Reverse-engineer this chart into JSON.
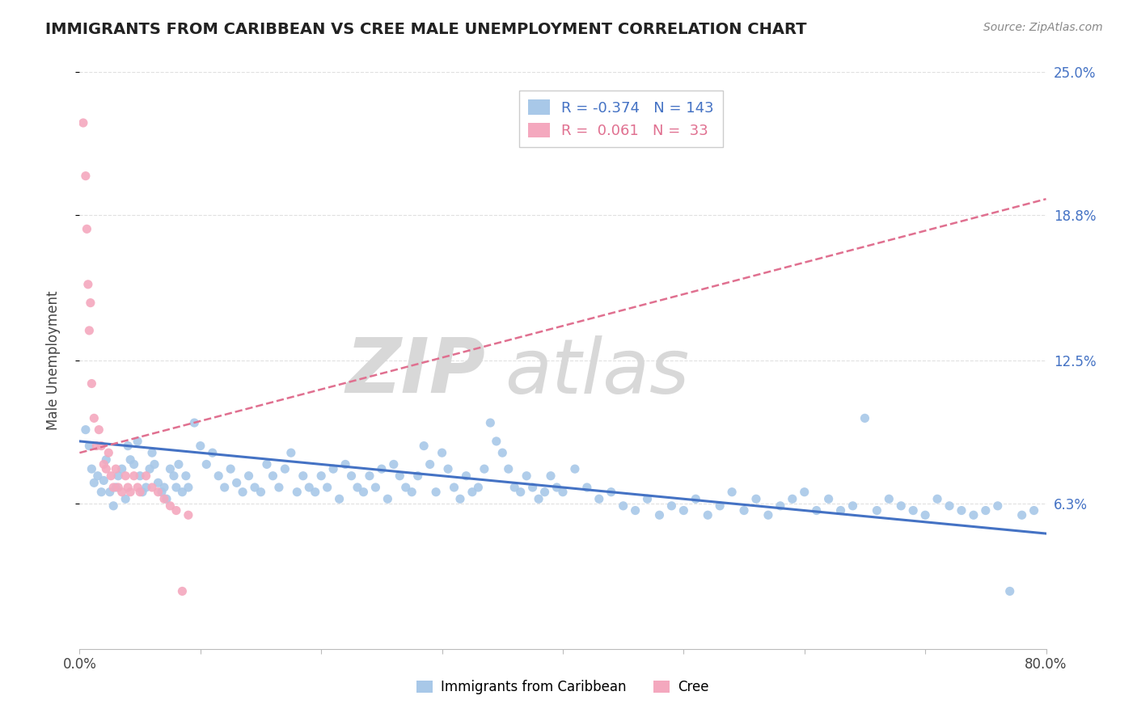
{
  "title": "IMMIGRANTS FROM CARIBBEAN VS CREE MALE UNEMPLOYMENT CORRELATION CHART",
  "source_text": "Source: ZipAtlas.com",
  "ylabel": "Male Unemployment",
  "xlim": [
    0.0,
    0.8
  ],
  "ylim": [
    0.0,
    0.25
  ],
  "xtick_labels": [
    "0.0%",
    "80.0%"
  ],
  "ytick_labels_right": [
    "6.3%",
    "12.5%",
    "18.8%",
    "25.0%"
  ],
  "ytick_vals_right": [
    0.063,
    0.125,
    0.188,
    0.25
  ],
  "watermark_text": "ZIP",
  "watermark_text2": "atlas",
  "background_color": "#ffffff",
  "grid_color": "#e0e0e0",
  "caribbean_color": "#a8c8e8",
  "cree_color": "#f4a8be",
  "caribbean_line_color": "#4472c4",
  "cree_line_color": "#e07090",
  "carib_R": -0.374,
  "carib_N": 143,
  "cree_R": 0.061,
  "cree_N": 33,
  "caribbean_scatter": [
    [
      0.005,
      0.095
    ],
    [
      0.008,
      0.088
    ],
    [
      0.01,
      0.078
    ],
    [
      0.012,
      0.072
    ],
    [
      0.015,
      0.075
    ],
    [
      0.018,
      0.068
    ],
    [
      0.02,
      0.073
    ],
    [
      0.022,
      0.082
    ],
    [
      0.025,
      0.068
    ],
    [
      0.028,
      0.062
    ],
    [
      0.03,
      0.07
    ],
    [
      0.032,
      0.075
    ],
    [
      0.035,
      0.078
    ],
    [
      0.038,
      0.065
    ],
    [
      0.04,
      0.088
    ],
    [
      0.042,
      0.082
    ],
    [
      0.045,
      0.08
    ],
    [
      0.048,
      0.09
    ],
    [
      0.05,
      0.075
    ],
    [
      0.052,
      0.068
    ],
    [
      0.055,
      0.07
    ],
    [
      0.058,
      0.078
    ],
    [
      0.06,
      0.085
    ],
    [
      0.062,
      0.08
    ],
    [
      0.065,
      0.072
    ],
    [
      0.068,
      0.068
    ],
    [
      0.07,
      0.07
    ],
    [
      0.072,
      0.065
    ],
    [
      0.075,
      0.078
    ],
    [
      0.078,
      0.075
    ],
    [
      0.08,
      0.07
    ],
    [
      0.082,
      0.08
    ],
    [
      0.085,
      0.068
    ],
    [
      0.088,
      0.075
    ],
    [
      0.09,
      0.07
    ],
    [
      0.095,
      0.098
    ],
    [
      0.1,
      0.088
    ],
    [
      0.105,
      0.08
    ],
    [
      0.11,
      0.085
    ],
    [
      0.115,
      0.075
    ],
    [
      0.12,
      0.07
    ],
    [
      0.125,
      0.078
    ],
    [
      0.13,
      0.072
    ],
    [
      0.135,
      0.068
    ],
    [
      0.14,
      0.075
    ],
    [
      0.145,
      0.07
    ],
    [
      0.15,
      0.068
    ],
    [
      0.155,
      0.08
    ],
    [
      0.16,
      0.075
    ],
    [
      0.165,
      0.07
    ],
    [
      0.17,
      0.078
    ],
    [
      0.175,
      0.085
    ],
    [
      0.18,
      0.068
    ],
    [
      0.185,
      0.075
    ],
    [
      0.19,
      0.07
    ],
    [
      0.195,
      0.068
    ],
    [
      0.2,
      0.075
    ],
    [
      0.205,
      0.07
    ],
    [
      0.21,
      0.078
    ],
    [
      0.215,
      0.065
    ],
    [
      0.22,
      0.08
    ],
    [
      0.225,
      0.075
    ],
    [
      0.23,
      0.07
    ],
    [
      0.235,
      0.068
    ],
    [
      0.24,
      0.075
    ],
    [
      0.245,
      0.07
    ],
    [
      0.25,
      0.078
    ],
    [
      0.255,
      0.065
    ],
    [
      0.26,
      0.08
    ],
    [
      0.265,
      0.075
    ],
    [
      0.27,
      0.07
    ],
    [
      0.275,
      0.068
    ],
    [
      0.28,
      0.075
    ],
    [
      0.285,
      0.088
    ],
    [
      0.29,
      0.08
    ],
    [
      0.295,
      0.068
    ],
    [
      0.3,
      0.085
    ],
    [
      0.305,
      0.078
    ],
    [
      0.31,
      0.07
    ],
    [
      0.315,
      0.065
    ],
    [
      0.32,
      0.075
    ],
    [
      0.325,
      0.068
    ],
    [
      0.33,
      0.07
    ],
    [
      0.335,
      0.078
    ],
    [
      0.34,
      0.098
    ],
    [
      0.345,
      0.09
    ],
    [
      0.35,
      0.085
    ],
    [
      0.355,
      0.078
    ],
    [
      0.36,
      0.07
    ],
    [
      0.365,
      0.068
    ],
    [
      0.37,
      0.075
    ],
    [
      0.375,
      0.07
    ],
    [
      0.38,
      0.065
    ],
    [
      0.385,
      0.068
    ],
    [
      0.39,
      0.075
    ],
    [
      0.395,
      0.07
    ],
    [
      0.4,
      0.068
    ],
    [
      0.41,
      0.078
    ],
    [
      0.42,
      0.07
    ],
    [
      0.43,
      0.065
    ],
    [
      0.44,
      0.068
    ],
    [
      0.45,
      0.062
    ],
    [
      0.46,
      0.06
    ],
    [
      0.47,
      0.065
    ],
    [
      0.48,
      0.058
    ],
    [
      0.49,
      0.062
    ],
    [
      0.5,
      0.06
    ],
    [
      0.51,
      0.065
    ],
    [
      0.52,
      0.058
    ],
    [
      0.53,
      0.062
    ],
    [
      0.54,
      0.068
    ],
    [
      0.55,
      0.06
    ],
    [
      0.56,
      0.065
    ],
    [
      0.57,
      0.058
    ],
    [
      0.58,
      0.062
    ],
    [
      0.59,
      0.065
    ],
    [
      0.6,
      0.068
    ],
    [
      0.61,
      0.06
    ],
    [
      0.62,
      0.065
    ],
    [
      0.63,
      0.06
    ],
    [
      0.64,
      0.062
    ],
    [
      0.65,
      0.1
    ],
    [
      0.66,
      0.06
    ],
    [
      0.67,
      0.065
    ],
    [
      0.68,
      0.062
    ],
    [
      0.69,
      0.06
    ],
    [
      0.7,
      0.058
    ],
    [
      0.71,
      0.065
    ],
    [
      0.72,
      0.062
    ],
    [
      0.73,
      0.06
    ],
    [
      0.74,
      0.058
    ],
    [
      0.75,
      0.06
    ],
    [
      0.76,
      0.062
    ],
    [
      0.77,
      0.025
    ],
    [
      0.78,
      0.058
    ],
    [
      0.79,
      0.06
    ]
  ],
  "cree_scatter": [
    [
      0.003,
      0.228
    ],
    [
      0.005,
      0.205
    ],
    [
      0.006,
      0.182
    ],
    [
      0.007,
      0.158
    ],
    [
      0.008,
      0.138
    ],
    [
      0.009,
      0.15
    ],
    [
      0.01,
      0.115
    ],
    [
      0.012,
      0.1
    ],
    [
      0.014,
      0.088
    ],
    [
      0.016,
      0.095
    ],
    [
      0.018,
      0.088
    ],
    [
      0.02,
      0.08
    ],
    [
      0.022,
      0.078
    ],
    [
      0.024,
      0.085
    ],
    [
      0.026,
      0.075
    ],
    [
      0.028,
      0.07
    ],
    [
      0.03,
      0.078
    ],
    [
      0.032,
      0.07
    ],
    [
      0.035,
      0.068
    ],
    [
      0.038,
      0.075
    ],
    [
      0.04,
      0.07
    ],
    [
      0.042,
      0.068
    ],
    [
      0.045,
      0.075
    ],
    [
      0.048,
      0.07
    ],
    [
      0.05,
      0.068
    ],
    [
      0.055,
      0.075
    ],
    [
      0.06,
      0.07
    ],
    [
      0.065,
      0.068
    ],
    [
      0.07,
      0.065
    ],
    [
      0.075,
      0.062
    ],
    [
      0.08,
      0.06
    ],
    [
      0.085,
      0.025
    ],
    [
      0.09,
      0.058
    ]
  ]
}
